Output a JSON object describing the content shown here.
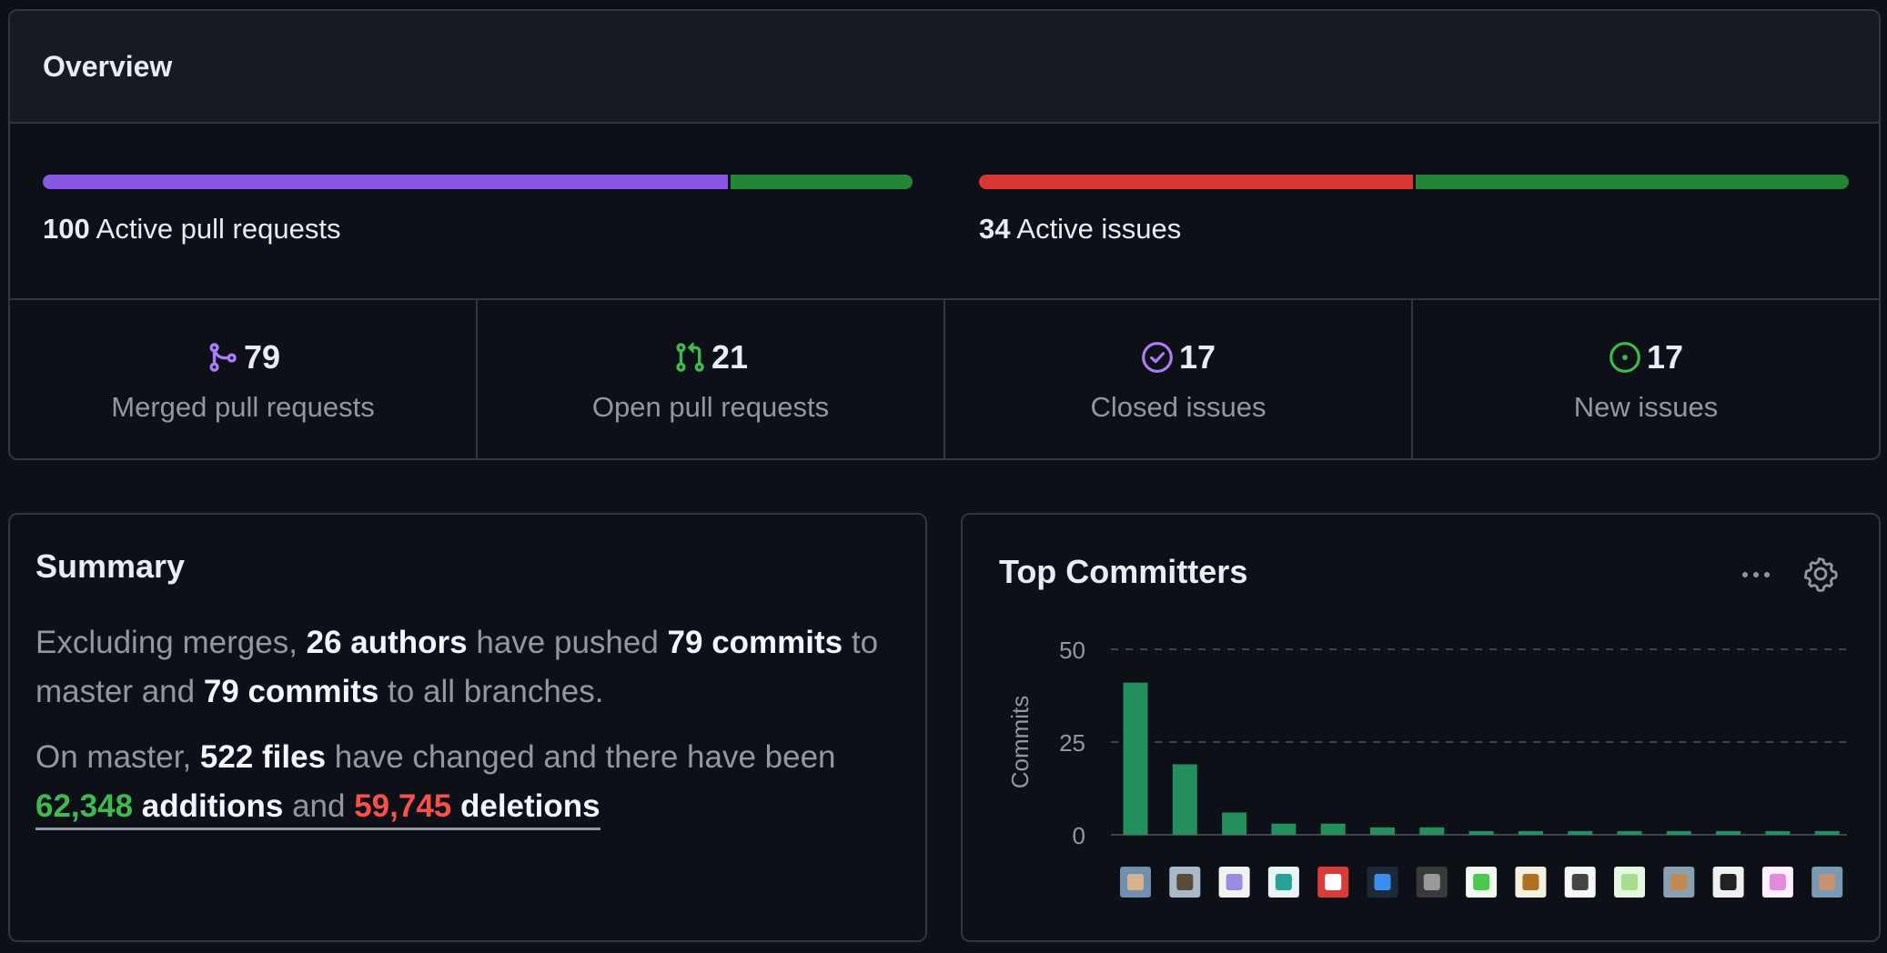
{
  "overview": {
    "title": "Overview",
    "pull_requests": {
      "count": "100",
      "label": "Active pull requests",
      "merged_fraction": 0.79,
      "open_fraction": 0.21
    },
    "issues": {
      "count": "34",
      "label": "Active issues",
      "closed_fraction": 0.5,
      "new_fraction": 0.5
    },
    "stats": [
      {
        "icon": "git-merge-icon",
        "value": "79",
        "label": "Merged pull requests",
        "color": "#ab7df8"
      },
      {
        "icon": "git-pull-request-icon",
        "value": "21",
        "label": "Open pull requests",
        "color": "#3fb950"
      },
      {
        "icon": "issue-closed-icon",
        "value": "17",
        "label": "Closed issues",
        "color": "#ab7df8"
      },
      {
        "icon": "issue-opened-icon",
        "value": "17",
        "label": "New issues",
        "color": "#3fb950"
      }
    ],
    "colors": {
      "merged": "#8957e5",
      "open": "#238636",
      "closed": "#da3633",
      "new": "#238636"
    }
  },
  "summary": {
    "title": "Summary",
    "p1": {
      "t1": "Excluding merges, ",
      "authors": "26 authors",
      "t2": " have pushed ",
      "commits_master": "79 commits",
      "t3": " to master and ",
      "commits_all": "79 commits",
      "t4": " to all branches."
    },
    "p2": {
      "t1": "On master, ",
      "files": "522 files",
      "t2": " have changed and there have been ",
      "additions_num": "62,348",
      "additions_word": " additions",
      "t3": " and ",
      "deletions_num": "59,745",
      "deletions_word": " deletions"
    }
  },
  "committers": {
    "title": "Top Committers",
    "menu_icon": "kebab-horizontal-icon",
    "settings_icon": "gear-icon"
  },
  "chart_data": {
    "type": "bar",
    "ylabel": "Commits",
    "ylim": [
      0,
      50
    ],
    "yticks": [
      "0",
      "25",
      "50"
    ],
    "grid": true,
    "bar_color": "#238f5e",
    "values": [
      41,
      19,
      6,
      3,
      3,
      2,
      2,
      1,
      1,
      1,
      1,
      1,
      1,
      1,
      1
    ],
    "avatars": [
      {
        "bg": "#6f8fb0",
        "fg": "#d9b38c"
      },
      {
        "bg": "#a9b9c9",
        "fg": "#5a4a3a"
      },
      {
        "bg": "#f2f2f2",
        "fg": "#9a8ce0"
      },
      {
        "bg": "#e8f4f4",
        "fg": "#2aa198"
      },
      {
        "bg": "#d93a3a",
        "fg": "#ffffff"
      },
      {
        "bg": "#1c2b3a",
        "fg": "#3a8ff0"
      },
      {
        "bg": "#3a3a3a",
        "fg": "#9a9a9a"
      },
      {
        "bg": "#f0faf0",
        "fg": "#4bc94b"
      },
      {
        "bg": "#f5efe0",
        "fg": "#b0701f"
      },
      {
        "bg": "#f7f7f7",
        "fg": "#444444"
      },
      {
        "bg": "#e6f7e1",
        "fg": "#a6dd8f"
      },
      {
        "bg": "#8aa0b0",
        "fg": "#c08a50"
      },
      {
        "bg": "#f0f0f0",
        "fg": "#222222"
      },
      {
        "bg": "#fdf0fb",
        "fg": "#e48adc"
      },
      {
        "bg": "#7a9ab4",
        "fg": "#c89070"
      }
    ]
  }
}
